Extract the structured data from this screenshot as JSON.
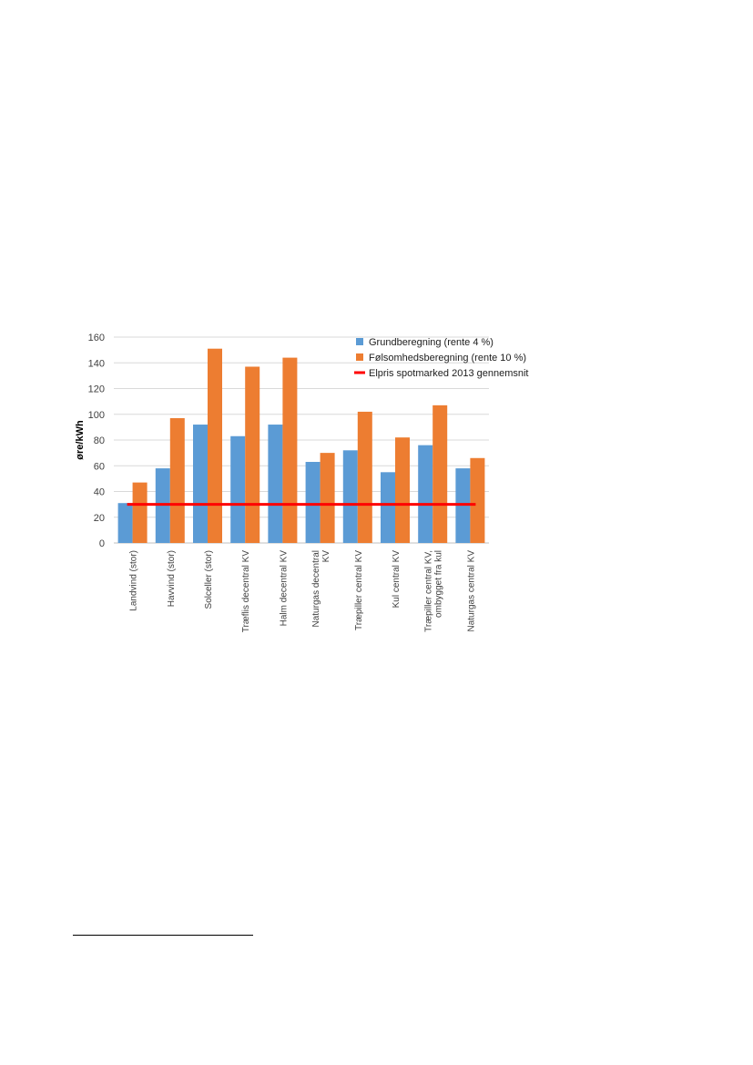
{
  "chart_data": {
    "type": "bar",
    "ylabel": "øre/kWh",
    "ylim": [
      0,
      160
    ],
    "yticks": [
      0,
      20,
      40,
      60,
      80,
      100,
      120,
      140,
      160
    ],
    "grid": "horizontal",
    "legend_position": "top-right",
    "categories": [
      [
        "Landvind (stor)"
      ],
      [
        "Havvind (stor)"
      ],
      [
        "Solceller (stor)"
      ],
      [
        "Træflis decentral KV"
      ],
      [
        "Halm decentral KV"
      ],
      [
        "Naturgas decentral",
        "KV"
      ],
      [
        "Træpiller central KV"
      ],
      [
        "Kul central KV"
      ],
      [
        "Træpiller central KV,",
        "ombygget fra kul"
      ],
      [
        "Naturgas central KV"
      ]
    ],
    "series": [
      {
        "name": "Grundberegning (rente 4 %)",
        "color": "#5B9BD5",
        "values": [
          31,
          58,
          92,
          83,
          92,
          63,
          72,
          55,
          76,
          58
        ]
      },
      {
        "name": "Følsomhedsberegning (rente 10 %)",
        "color": "#ED7D31",
        "values": [
          47,
          97,
          151,
          137,
          144,
          70,
          102,
          82,
          107,
          66
        ]
      }
    ],
    "line": {
      "name": "Elpris spotmarked 2013 gennemsnit",
      "color": "#FF0000",
      "value": 30
    }
  }
}
